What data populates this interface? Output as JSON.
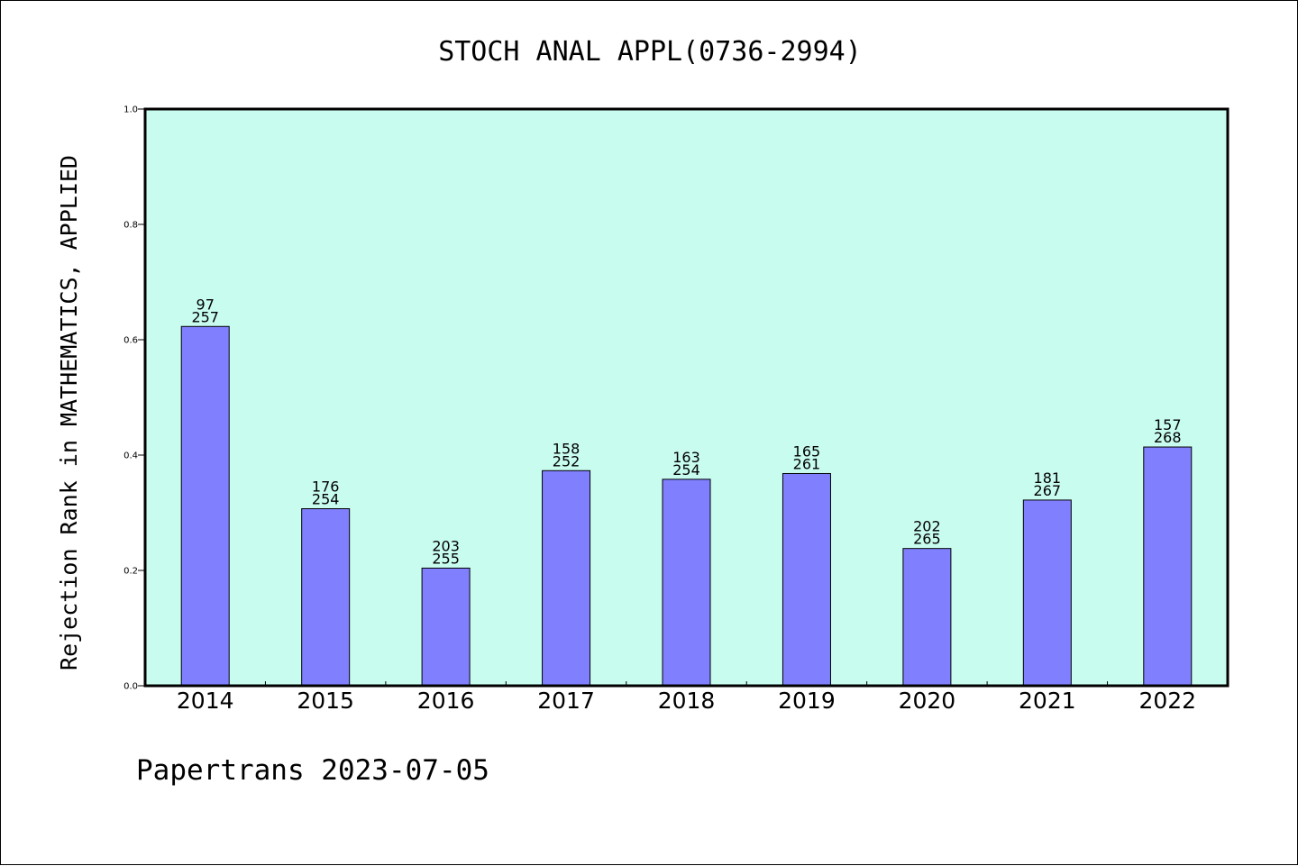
{
  "chart_data": {
    "type": "bar",
    "title": "STOCH ANAL APPL(0736-2994)",
    "xlabel": "",
    "ylabel": "Rejection Rank in MATHEMATICS, APPLIED",
    "ylim": [
      0.0,
      1.0
    ],
    "yticks": [
      "0.0",
      "0.2",
      "0.4",
      "0.6",
      "0.8",
      "1.0"
    ],
    "categories": [
      "2014",
      "2015",
      "2016",
      "2017",
      "2018",
      "2019",
      "2020",
      "2021",
      "2022"
    ],
    "values": [
      0.623,
      0.307,
      0.204,
      0.373,
      0.358,
      0.368,
      0.238,
      0.322,
      0.414
    ],
    "labels_top": [
      "97",
      "176",
      "203",
      "158",
      "163",
      "165",
      "202",
      "181",
      "157"
    ],
    "labels_bottom": [
      "257",
      "254",
      "255",
      "252",
      "254",
      "261",
      "265",
      "267",
      "268"
    ],
    "plot_background": "#c8fcef",
    "bar_color": "#8080ff",
    "grid": false,
    "legend": "none"
  },
  "footer": {
    "text": "Papertrans 2023-07-05"
  }
}
